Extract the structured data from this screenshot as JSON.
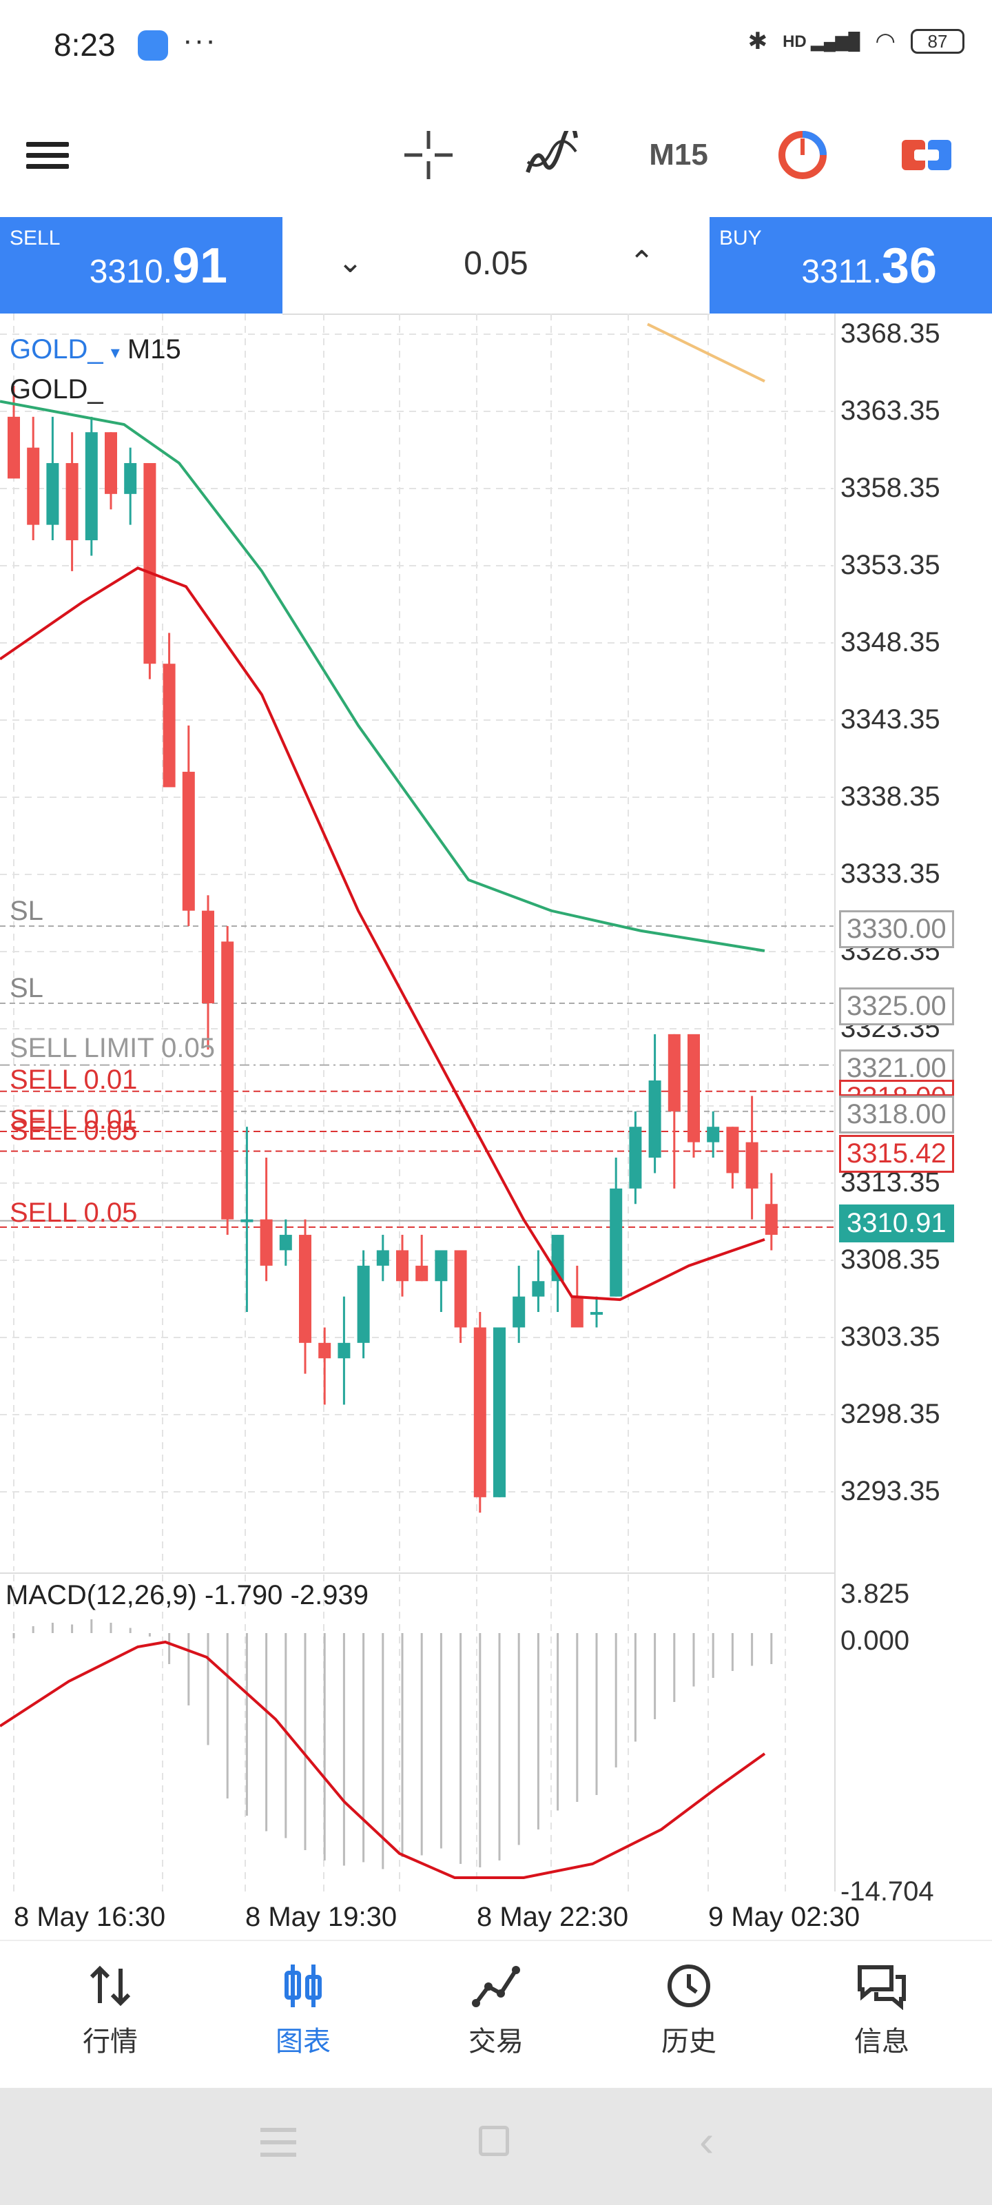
{
  "status": {
    "time": "8:23",
    "dots": "···",
    "signal": "HD",
    "battery": "87"
  },
  "toolbar": {
    "timeframe": "M15"
  },
  "trade": {
    "sell_label": "SELL",
    "sell_price_small": "3310.",
    "sell_price_big": "91",
    "buy_label": "BUY",
    "buy_price_small": "3311.",
    "buy_price_big": "36",
    "lot": "0.05"
  },
  "chart": {
    "symbol": "GOLD_",
    "symbol_arrow": "▾",
    "timeframe": "M15",
    "subtitle": "GOLD_",
    "price_labels": [
      "3368.35",
      "3363.35",
      "3358.35",
      "3353.35",
      "3348.35",
      "3343.35",
      "3338.35",
      "3333.35",
      "3328.35",
      "3323.35",
      "3313.35",
      "3308.35",
      "3303.35",
      "3298.35",
      "3293.35"
    ],
    "tags": {
      "sl1": "3330.00",
      "sl2": "3325.00",
      "limit": "3321.00",
      "hidden": "3318.00",
      "t318": "3318.00",
      "sell": "3315.42",
      "current": "3310.91"
    },
    "orders": {
      "sl1": "SL",
      "sl2": "SL",
      "sell_limit": "SELL LIMIT 0.05",
      "sell1": "SELL 0.01",
      "sell2": "SELL 0.01",
      "sell3": "SELL 0.05",
      "sell4": "SELL 0.05"
    },
    "macd_title": "MACD(12,26,9) -1.790 -2.939",
    "macd_labels": [
      "3.825",
      "0.000",
      "-14.704"
    ],
    "x_labels": [
      "8 May 16:30",
      "8 May 19:30",
      "8 May 22:30",
      "9 May 02:30"
    ],
    "colors": {
      "up": "#26a69a",
      "down": "#ef5350",
      "ma_green": "#2eaa72",
      "ma_red": "#d8121b",
      "ma_orange": "#f2c27a"
    }
  },
  "nav": [
    {
      "label": "行情",
      "icon": "quotes-icon"
    },
    {
      "label": "图表",
      "icon": "chart-icon",
      "active": true
    },
    {
      "label": "交易",
      "icon": "trade-icon"
    },
    {
      "label": "历史",
      "icon": "history-icon"
    },
    {
      "label": "信息",
      "icon": "messages-icon"
    }
  ]
}
